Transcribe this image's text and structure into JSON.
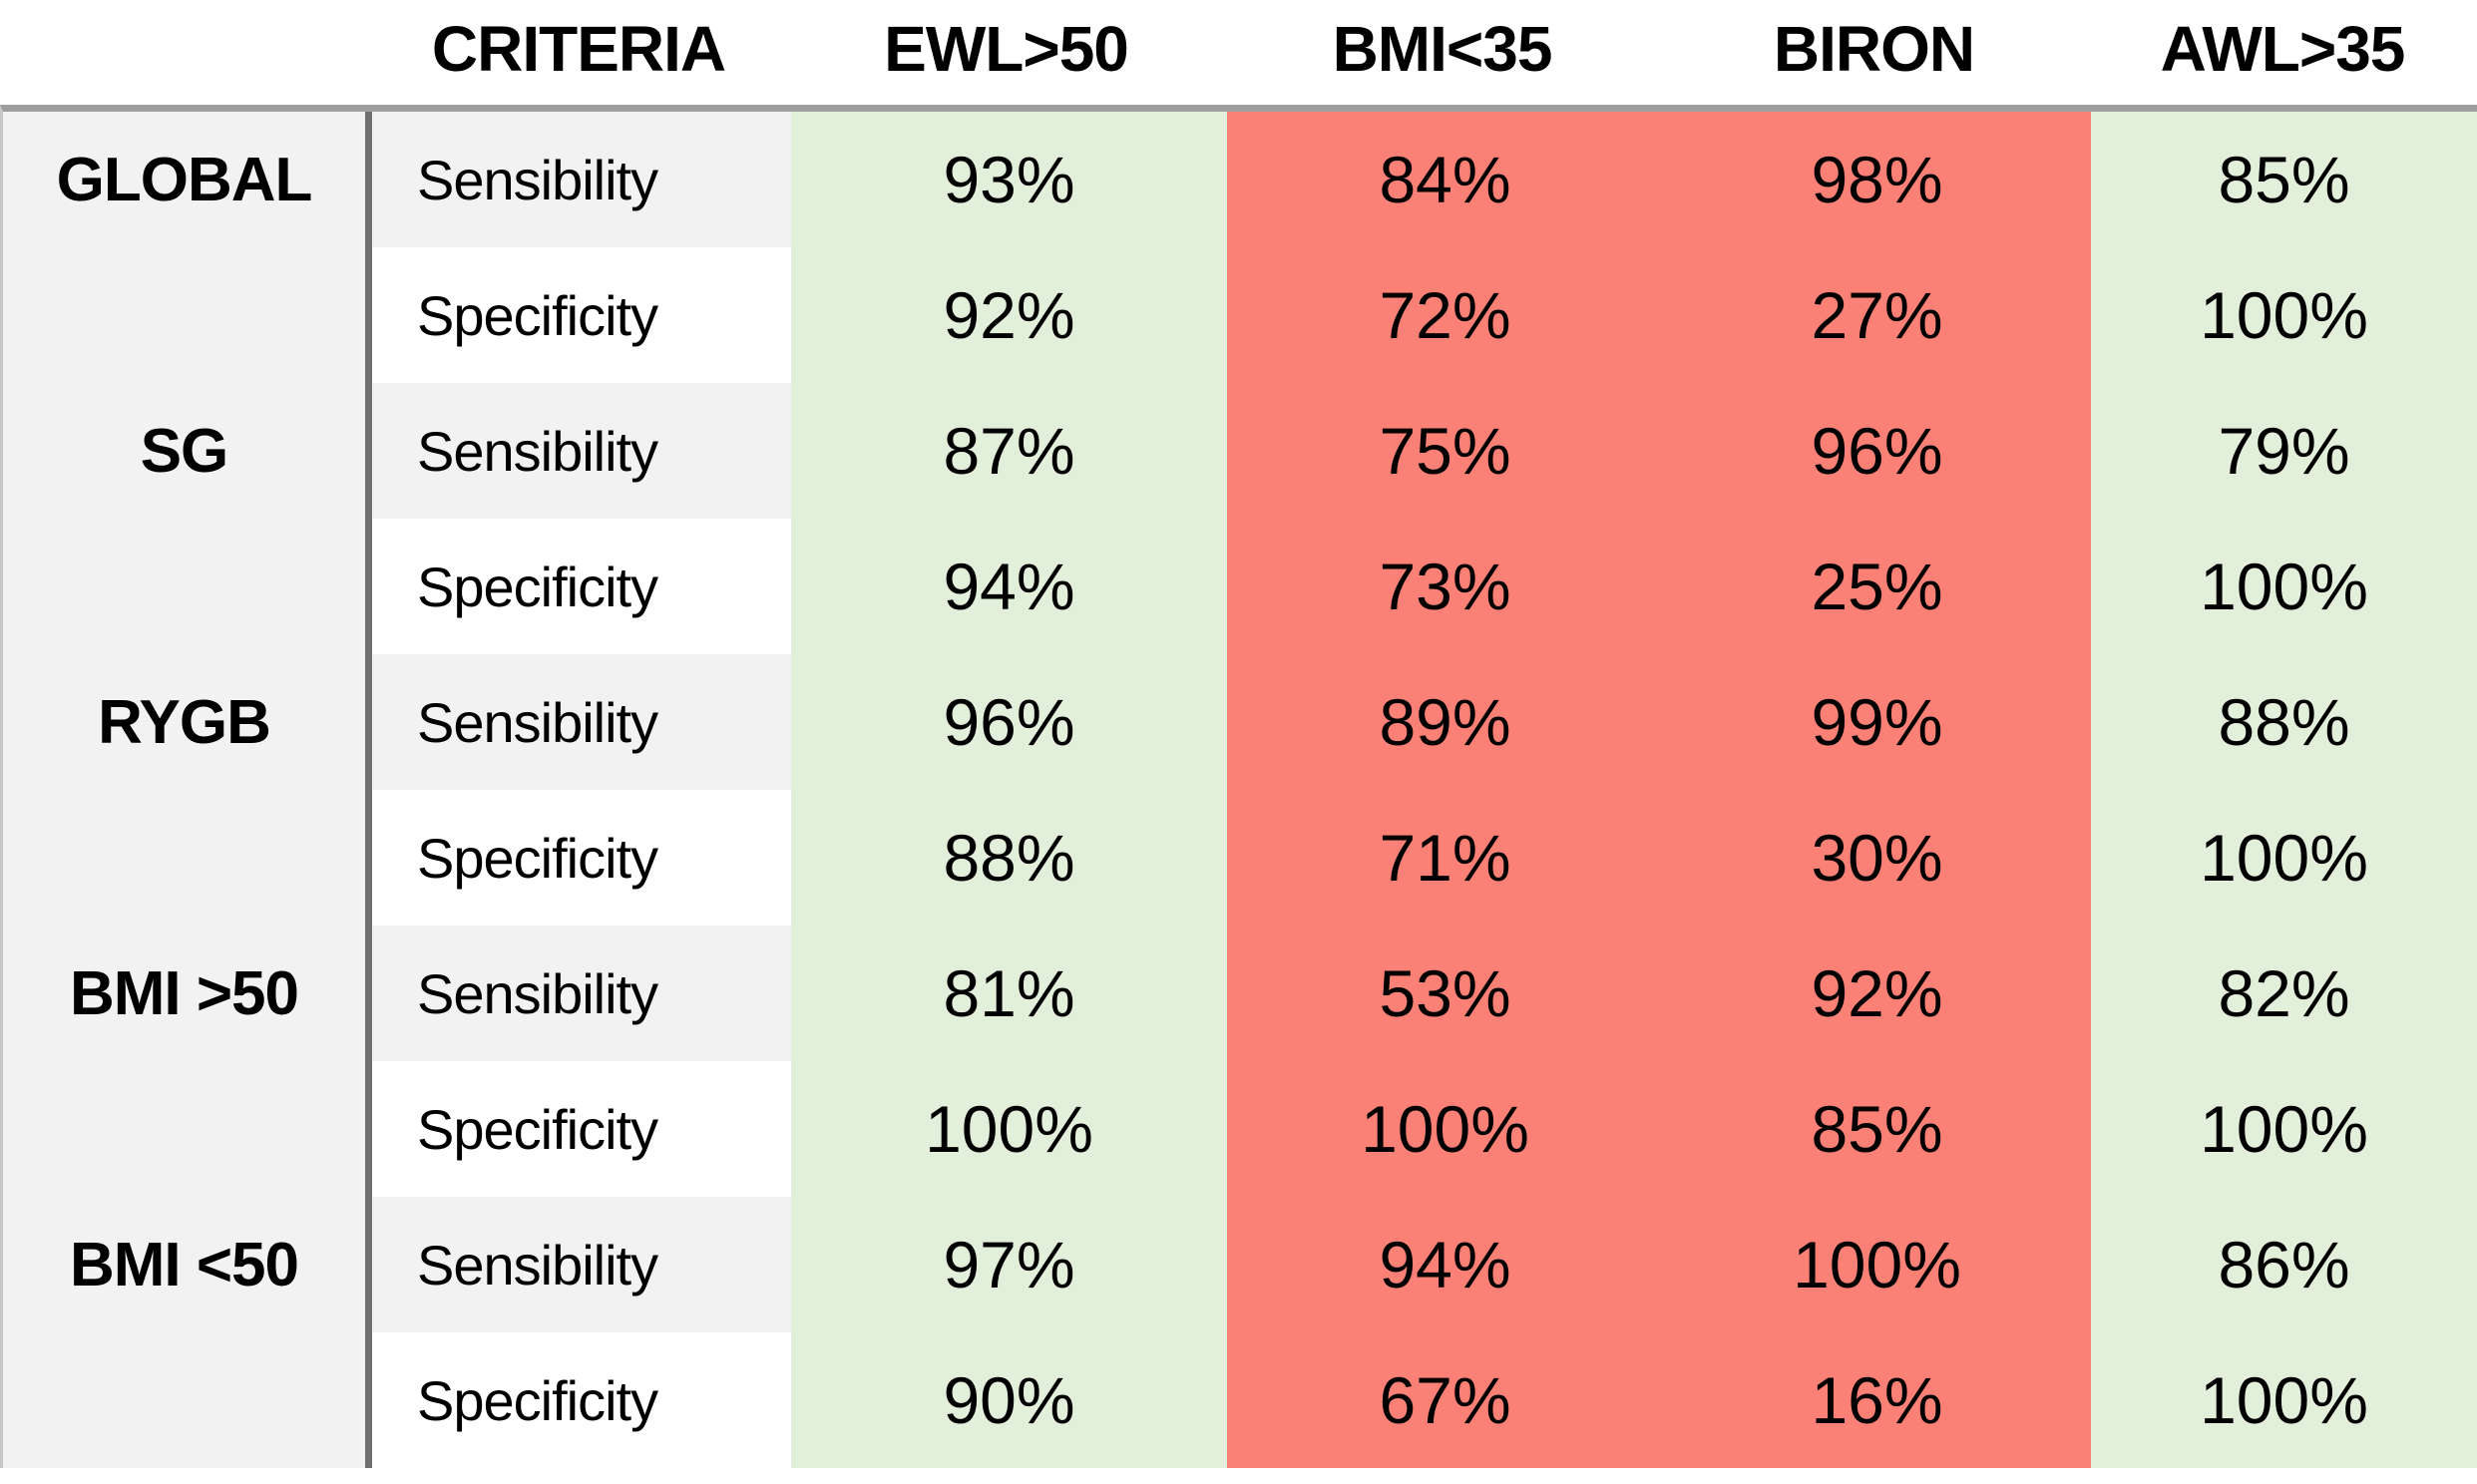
{
  "chart_data": {
    "type": "table",
    "columns": [
      "",
      "CRITERIA",
      "EWL>50",
      "BMI<35",
      "BIRON",
      "AWL>35"
    ],
    "column_tints": [
      "gray",
      "alternating",
      "green",
      "red",
      "red",
      "green"
    ],
    "rows": [
      [
        "GLOBAL",
        "Sensibility",
        "93%",
        "84%",
        "98%",
        "85%"
      ],
      [
        "",
        "Specificity",
        "92%",
        "72%",
        "27%",
        "100%"
      ],
      [
        "SG",
        "Sensibility",
        "87%",
        "75%",
        "96%",
        "79%"
      ],
      [
        "",
        "Specificity",
        "94%",
        "73%",
        "25%",
        "100%"
      ],
      [
        "RYGB",
        "Sensibility",
        "96%",
        "89%",
        "99%",
        "88%"
      ],
      [
        "",
        "Specificity",
        "88%",
        "71%",
        "30%",
        "100%"
      ],
      [
        "BMI >50",
        "Sensibility",
        "81%",
        "53%",
        "92%",
        "82%"
      ],
      [
        "",
        "Specificity",
        "100%",
        "100%",
        "85%",
        "100%"
      ],
      [
        "BMI <50",
        "Sensibility",
        "97%",
        "94%",
        "100%",
        "86%"
      ],
      [
        "",
        "Specificity",
        "90%",
        "67%",
        "16%",
        "100%"
      ]
    ],
    "colors": {
      "green": "#e2efda",
      "red": "#fb8076",
      "gray": "#f2f2f2",
      "divider": "#6f6f6f",
      "topline": "#9e9e9e",
      "edge": "#c8c8c8"
    },
    "legend_meaning": {
      "green": "favourable criterion column",
      "red": "unfavourable criterion column"
    }
  }
}
